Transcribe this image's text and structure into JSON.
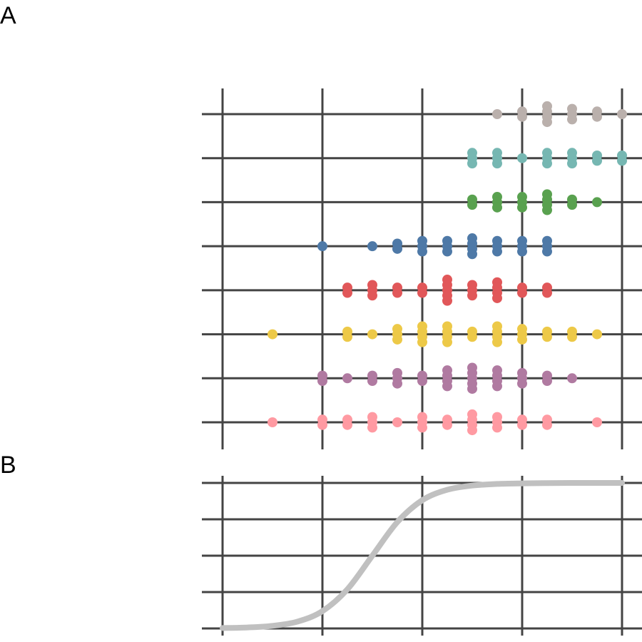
{
  "panels": {
    "a_label": "A",
    "b_label": "B"
  },
  "colors": {
    "grid": "#444444",
    "curve": "#c0c0c0",
    "background": "#ffffff"
  },
  "chart_data": [
    {
      "panel": "A",
      "type": "scatter",
      "title": "",
      "xlabel": "",
      "ylabel": "",
      "xlim": [
        0,
        8
      ],
      "ylim": [
        0.5,
        8.5
      ],
      "x_gridlines": [
        0,
        2,
        4,
        6,
        8
      ],
      "y_gridlines": [
        1,
        2,
        3,
        4,
        5,
        6,
        7,
        8
      ],
      "grid": true,
      "point_spacing": 0.12,
      "series": [
        {
          "color": "#ff9aa2",
          "y": 1,
          "points": [
            [
              1,
              1
            ],
            [
              2,
              2
            ],
            [
              2.5,
              2
            ],
            [
              3,
              3
            ],
            [
              3.5,
              1
            ],
            [
              4,
              3
            ],
            [
              4.5,
              2
            ],
            [
              5,
              4
            ],
            [
              5.5,
              3
            ],
            [
              6,
              2
            ],
            [
              6.5,
              2
            ],
            [
              7.5,
              1
            ]
          ]
        },
        {
          "color": "#b07aa1",
          "y": 2,
          "points": [
            [
              2,
              2
            ],
            [
              2.5,
              1
            ],
            [
              3,
              2
            ],
            [
              3.5,
              3
            ],
            [
              4,
              2
            ],
            [
              4.5,
              4
            ],
            [
              5,
              5
            ],
            [
              5.5,
              4
            ],
            [
              6,
              3
            ],
            [
              6.5,
              2
            ],
            [
              7,
              1
            ]
          ]
        },
        {
          "color": "#edc948",
          "y": 3,
          "points": [
            [
              1,
              1
            ],
            [
              2.5,
              2
            ],
            [
              3,
              1
            ],
            [
              3.5,
              3
            ],
            [
              4,
              4
            ],
            [
              4.5,
              4
            ],
            [
              5,
              2
            ],
            [
              5.5,
              4
            ],
            [
              6,
              3
            ],
            [
              6.5,
              2
            ],
            [
              7,
              2
            ],
            [
              7.5,
              1
            ]
          ]
        },
        {
          "color": "#e15759",
          "y": 4,
          "points": [
            [
              2.5,
              2
            ],
            [
              3,
              3
            ],
            [
              3.5,
              2
            ],
            [
              4,
              2
            ],
            [
              4.5,
              5
            ],
            [
              5,
              3
            ],
            [
              5.5,
              4
            ],
            [
              6,
              2
            ],
            [
              6.5,
              2
            ]
          ]
        },
        {
          "color": "#4e79a7",
          "y": 5,
          "points": [
            [
              2,
              1
            ],
            [
              3,
              1
            ],
            [
              3.5,
              2
            ],
            [
              4,
              3
            ],
            [
              4.5,
              3
            ],
            [
              5,
              4
            ],
            [
              5.5,
              3
            ],
            [
              6,
              3
            ],
            [
              6.5,
              3
            ]
          ]
        },
        {
          "color": "#59a14f",
          "y": 6,
          "points": [
            [
              5,
              2
            ],
            [
              5.5,
              3
            ],
            [
              6,
              3
            ],
            [
              6.5,
              4
            ],
            [
              7,
              2
            ],
            [
              7.5,
              1
            ]
          ]
        },
        {
          "color": "#76b7b2",
          "y": 7,
          "points": [
            [
              5,
              3
            ],
            [
              5.5,
              3
            ],
            [
              6,
              1
            ],
            [
              6.5,
              3
            ],
            [
              7,
              3
            ],
            [
              7.5,
              2
            ],
            [
              8,
              2
            ]
          ]
        },
        {
          "color": "#bab0ac",
          "y": 8,
          "points": [
            [
              5.5,
              1
            ],
            [
              6,
              2
            ],
            [
              6.5,
              4
            ],
            [
              7,
              3
            ],
            [
              7.5,
              2
            ],
            [
              8,
              1
            ]
          ]
        }
      ]
    },
    {
      "panel": "B",
      "type": "line",
      "title": "",
      "xlabel": "",
      "ylabel": "",
      "xlim": [
        0,
        8
      ],
      "ylim": [
        0,
        1
      ],
      "x_gridlines": [
        0,
        2,
        4,
        6,
        8
      ],
      "y_gridlines": [
        0,
        0.25,
        0.5,
        0.75,
        1
      ],
      "grid": true,
      "series": [
        {
          "color": "#c0c0c0",
          "x": [
            0,
            0.5,
            1,
            1.5,
            2,
            2.5,
            3,
            3.5,
            4,
            4.5,
            5,
            5.5,
            6,
            6.5,
            7,
            7.5,
            8
          ],
          "y": [
            0.003,
            0.007,
            0.018,
            0.047,
            0.119,
            0.269,
            0.5,
            0.731,
            0.881,
            0.953,
            0.982,
            0.993,
            0.997,
            0.999,
            1,
            1,
            1
          ]
        }
      ]
    }
  ]
}
